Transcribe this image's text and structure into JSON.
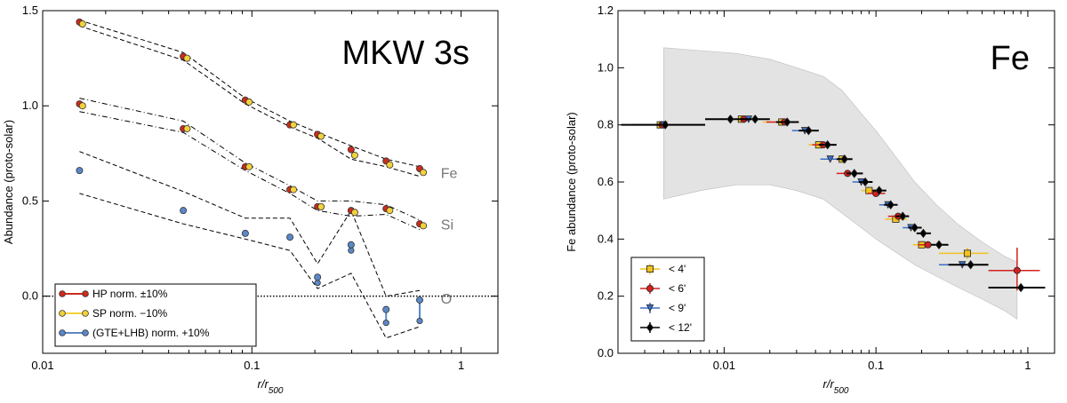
{
  "chart_data": [
    {
      "type": "scatter",
      "title": "MKW 3s",
      "xlabel": "r/r500",
      "ylabel": "Abundance (proto-solar)",
      "xscale": "log",
      "xlim": [
        0.01,
        1.5
      ],
      "ylim": [
        -0.3,
        1.5
      ],
      "xticks": [
        {
          "v": 0.01,
          "label": "0.01"
        },
        {
          "v": 0.1,
          "label": "0.1"
        },
        {
          "v": 1,
          "label": "1"
        }
      ],
      "yticks": [
        {
          "v": 0.0,
          "label": "0.0"
        },
        {
          "v": 0.5,
          "label": "0.5"
        },
        {
          "v": 1.0,
          "label": "1.0"
        },
        {
          "v": 1.5,
          "label": "1.5"
        }
      ],
      "element_labels": [
        {
          "text": "Fe",
          "x": 0.8,
          "y": 0.62
        },
        {
          "text": "Si",
          "x": 0.8,
          "y": 0.35
        },
        {
          "text": "O",
          "x": 0.8,
          "y": -0.04
        }
      ],
      "zero_line": true,
      "grid": false,
      "legend_position": "bottom-left",
      "series": [
        {
          "name": "HP norm. ±10%",
          "color": "#cc2b1d",
          "marker": "circle",
          "groups": [
            {
              "x": [
                0.015,
                0.047,
                0.093,
                0.152,
                0.206,
                0.298,
                0.438,
                0.634
              ],
              "y": [
                1.44,
                1.26,
                1.03,
                0.9,
                0.85,
                0.77,
                0.71,
                0.67
              ]
            },
            {
              "x": [
                0.015,
                0.047,
                0.093,
                0.152,
                0.206,
                0.298,
                0.438,
                0.634
              ],
              "y": [
                1.01,
                0.88,
                0.68,
                0.56,
                0.47,
                0.45,
                0.46,
                0.38
              ]
            }
          ]
        },
        {
          "name": "SP norm. −10%",
          "color": "#f2d23a",
          "marker": "circle",
          "groups": [
            {
              "x": [
                0.0155,
                0.049,
                0.097,
                0.158,
                0.214,
                0.31,
                0.456,
                0.66
              ],
              "y": [
                1.43,
                1.25,
                1.02,
                0.9,
                0.84,
                0.74,
                0.69,
                0.65
              ]
            },
            {
              "x": [
                0.0155,
                0.049,
                0.097,
                0.158,
                0.214,
                0.31,
                0.456,
                0.66
              ],
              "y": [
                1.0,
                0.88,
                0.68,
                0.56,
                0.47,
                0.44,
                0.45,
                0.37
              ]
            }
          ]
        },
        {
          "name": "(GTE+LHB) norm. +10%",
          "color": "#5a88c8",
          "marker": "circle",
          "groups": [
            {
              "x": [
                0.015,
                0.047,
                0.093,
                0.152,
                0.206,
                0.298,
                0.438,
                0.634
              ],
              "y": [
                0.66,
                0.45,
                0.33,
                0.31,
                0.1,
                0.27,
                -0.07,
                -0.02
              ]
            }
          ],
          "ranges": [
            {
              "x": 0.206,
              "y1": 0.07,
              "y2": 0.11
            },
            {
              "x": 0.298,
              "y1": 0.24,
              "y2": 0.28
            },
            {
              "x": 0.438,
              "y1": -0.14,
              "y2": -0.06
            },
            {
              "x": 0.634,
              "y1": -0.13,
              "y2": -0.02
            }
          ]
        }
      ],
      "envelopes": [
        {
          "style": "dashed",
          "upper": {
            "x": [
              0.015,
              0.047,
              0.093,
              0.152,
              0.206,
              0.298,
              0.438,
              0.634
            ],
            "y": [
              1.45,
              1.28,
              1.04,
              0.92,
              0.86,
              0.79,
              0.72,
              0.68
            ]
          },
          "lower": {
            "x": [
              0.015,
              0.047,
              0.093,
              0.152,
              0.206,
              0.298,
              0.438,
              0.634
            ],
            "y": [
              1.42,
              1.24,
              1.01,
              0.89,
              0.83,
              0.72,
              0.68,
              0.63
            ]
          }
        },
        {
          "style": "dashdot",
          "upper": {
            "x": [
              0.015,
              0.047,
              0.093,
              0.152,
              0.206,
              0.298,
              0.438,
              0.634
            ],
            "y": [
              1.04,
              0.92,
              0.7,
              0.58,
              0.5,
              0.5,
              0.48,
              0.4
            ]
          },
          "lower": {
            "x": [
              0.015,
              0.047,
              0.093,
              0.152,
              0.206,
              0.298,
              0.438,
              0.634
            ],
            "y": [
              0.97,
              0.86,
              0.66,
              0.54,
              0.45,
              0.42,
              0.43,
              0.35
            ]
          }
        },
        {
          "style": "dashed",
          "upper": {
            "x": [
              0.015,
              0.047,
              0.093,
              0.152,
              0.206,
              0.298,
              0.438,
              0.634
            ],
            "y": [
              0.76,
              0.55,
              0.41,
              0.41,
              0.17,
              0.45,
              0.0,
              0.03
            ]
          },
          "lower": {
            "x": [
              0.015,
              0.047,
              0.093,
              0.152,
              0.206,
              0.298,
              0.438,
              0.634
            ],
            "y": [
              0.54,
              0.38,
              0.3,
              0.24,
              0.04,
              0.12,
              -0.22,
              -0.16
            ]
          }
        }
      ]
    },
    {
      "type": "scatter",
      "title": "Fe",
      "xlabel": "r/r500",
      "ylabel": "Fe abundance (proto-solar)",
      "xscale": "log",
      "xlim": [
        0.002,
        1.5
      ],
      "ylim": [
        0.0,
        1.2
      ],
      "xticks": [
        {
          "v": 0.01,
          "label": "0.01"
        },
        {
          "v": 0.1,
          "label": "0.1"
        },
        {
          "v": 1,
          "label": "1"
        }
      ],
      "yticks": [
        {
          "v": 0.0,
          "label": "0.0"
        },
        {
          "v": 0.2,
          "label": "0.2"
        },
        {
          "v": 0.4,
          "label": "0.4"
        },
        {
          "v": 0.6,
          "label": "0.6"
        },
        {
          "v": 0.8,
          "label": "0.8"
        },
        {
          "v": 1.0,
          "label": "1.0"
        },
        {
          "v": 1.2,
          "label": "1.2"
        }
      ],
      "grid": false,
      "legend_position": "bottom-left",
      "scatter_band": {
        "color": "#e3e3e3",
        "x": [
          0.004,
          0.007,
          0.012,
          0.02,
          0.03,
          0.045,
          0.06,
          0.08,
          0.1,
          0.13,
          0.18,
          0.25,
          0.35,
          0.5,
          0.7,
          0.85
        ],
        "upper": [
          1.07,
          1.06,
          1.05,
          1.03,
          1.0,
          0.97,
          0.92,
          0.84,
          0.78,
          0.7,
          0.6,
          0.52,
          0.45,
          0.39,
          0.34,
          0.32
        ],
        "lower": [
          0.54,
          0.57,
          0.59,
          0.59,
          0.57,
          0.54,
          0.49,
          0.44,
          0.4,
          0.36,
          0.31,
          0.27,
          0.23,
          0.19,
          0.15,
          0.12
        ]
      },
      "series": [
        {
          "name": "< 4'",
          "color": "#f2c21f",
          "marker": "square",
          "points": [
            {
              "x": 0.0038,
              "y": 0.8,
              "xlo": 0.0025,
              "xhi": 0.0075,
              "ylo": 0.79,
              "yhi": 0.81
            },
            {
              "x": 0.013,
              "y": 0.82,
              "xlo": 0.0095,
              "xhi": 0.018,
              "ylo": 0.81,
              "yhi": 0.83
            },
            {
              "x": 0.024,
              "y": 0.81,
              "xlo": 0.018,
              "xhi": 0.03,
              "ylo": 0.8,
              "yhi": 0.82
            },
            {
              "x": 0.042,
              "y": 0.73,
              "xlo": 0.036,
              "xhi": 0.05,
              "ylo": 0.72,
              "yhi": 0.74
            },
            {
              "x": 0.06,
              "y": 0.68,
              "xlo": 0.05,
              "xhi": 0.07,
              "ylo": 0.67,
              "yhi": 0.69
            },
            {
              "x": 0.09,
              "y": 0.57,
              "xlo": 0.08,
              "xhi": 0.105,
              "ylo": 0.56,
              "yhi": 0.58
            },
            {
              "x": 0.135,
              "y": 0.47,
              "xlo": 0.115,
              "xhi": 0.16,
              "ylo": 0.46,
              "yhi": 0.48
            },
            {
              "x": 0.2,
              "y": 0.38,
              "xlo": 0.175,
              "xhi": 0.24,
              "ylo": 0.37,
              "yhi": 0.39
            },
            {
              "x": 0.4,
              "y": 0.35,
              "xlo": 0.26,
              "xhi": 0.55,
              "ylo": 0.33,
              "yhi": 0.37
            }
          ]
        },
        {
          "name": "< 6'",
          "color": "#d42020",
          "marker": "circle",
          "points": [
            {
              "x": 0.0039,
              "y": 0.8,
              "xlo": 0.0025,
              "xhi": 0.0075,
              "ylo": 0.79,
              "yhi": 0.81
            },
            {
              "x": 0.0135,
              "y": 0.82,
              "xlo": 0.0095,
              "xhi": 0.019,
              "ylo": 0.81,
              "yhi": 0.83
            },
            {
              "x": 0.025,
              "y": 0.81,
              "xlo": 0.019,
              "xhi": 0.031,
              "ylo": 0.8,
              "yhi": 0.82
            },
            {
              "x": 0.045,
              "y": 0.73,
              "xlo": 0.038,
              "xhi": 0.053,
              "ylo": 0.72,
              "yhi": 0.74
            },
            {
              "x": 0.065,
              "y": 0.63,
              "xlo": 0.055,
              "xhi": 0.075,
              "ylo": 0.62,
              "yhi": 0.64
            },
            {
              "x": 0.1,
              "y": 0.56,
              "xlo": 0.088,
              "xhi": 0.115,
              "ylo": 0.55,
              "yhi": 0.57
            },
            {
              "x": 0.14,
              "y": 0.48,
              "xlo": 0.12,
              "xhi": 0.165,
              "ylo": 0.47,
              "yhi": 0.49
            },
            {
              "x": 0.22,
              "y": 0.38,
              "xlo": 0.19,
              "xhi": 0.26,
              "ylo": 0.37,
              "yhi": 0.39
            },
            {
              "x": 0.85,
              "y": 0.29,
              "xlo": 0.55,
              "xhi": 1.2,
              "ylo": 0.22,
              "yhi": 0.37
            }
          ]
        },
        {
          "name": "< 9'",
          "color": "#3b6fc7",
          "marker": "triangle",
          "points": [
            {
              "x": 0.004,
              "y": 0.8,
              "xlo": 0.0025,
              "xhi": 0.0075,
              "ylo": 0.79,
              "yhi": 0.81
            },
            {
              "x": 0.0145,
              "y": 0.82,
              "xlo": 0.01,
              "xhi": 0.02,
              "ylo": 0.81,
              "yhi": 0.83
            },
            {
              "x": 0.034,
              "y": 0.78,
              "xlo": 0.028,
              "xhi": 0.04,
              "ylo": 0.77,
              "yhi": 0.79
            },
            {
              "x": 0.05,
              "y": 0.68,
              "xlo": 0.043,
              "xhi": 0.058,
              "ylo": 0.67,
              "yhi": 0.69
            },
            {
              "x": 0.08,
              "y": 0.6,
              "xlo": 0.07,
              "xhi": 0.092,
              "ylo": 0.59,
              "yhi": 0.61
            },
            {
              "x": 0.12,
              "y": 0.52,
              "xlo": 0.105,
              "xhi": 0.14,
              "ylo": 0.51,
              "yhi": 0.53
            },
            {
              "x": 0.17,
              "y": 0.44,
              "xlo": 0.15,
              "xhi": 0.2,
              "ylo": 0.43,
              "yhi": 0.45
            },
            {
              "x": 0.37,
              "y": 0.31,
              "xlo": 0.26,
              "xhi": 0.52,
              "ylo": 0.3,
              "yhi": 0.32
            }
          ]
        },
        {
          "name": "< 12'",
          "color": "#000000",
          "marker": "diamond",
          "points": [
            {
              "x": 0.0041,
              "y": 0.8,
              "xlo": 0.0021,
              "xhi": 0.0075,
              "ylo": 0.79,
              "yhi": 0.81
            },
            {
              "x": 0.011,
              "y": 0.82,
              "xlo": 0.0075,
              "xhi": 0.015,
              "ylo": 0.81,
              "yhi": 0.83
            },
            {
              "x": 0.016,
              "y": 0.82,
              "xlo": 0.013,
              "xhi": 0.02,
              "ylo": 0.81,
              "yhi": 0.83
            },
            {
              "x": 0.026,
              "y": 0.81,
              "xlo": 0.022,
              "xhi": 0.031,
              "ylo": 0.8,
              "yhi": 0.82
            },
            {
              "x": 0.036,
              "y": 0.78,
              "xlo": 0.031,
              "xhi": 0.042,
              "ylo": 0.77,
              "yhi": 0.79
            },
            {
              "x": 0.048,
              "y": 0.73,
              "xlo": 0.042,
              "xhi": 0.055,
              "ylo": 0.72,
              "yhi": 0.74
            },
            {
              "x": 0.062,
              "y": 0.68,
              "xlo": 0.055,
              "xhi": 0.07,
              "ylo": 0.67,
              "yhi": 0.69
            },
            {
              "x": 0.072,
              "y": 0.63,
              "xlo": 0.064,
              "xhi": 0.082,
              "ylo": 0.62,
              "yhi": 0.64
            },
            {
              "x": 0.085,
              "y": 0.6,
              "xlo": 0.077,
              "xhi": 0.095,
              "ylo": 0.59,
              "yhi": 0.61
            },
            {
              "x": 0.105,
              "y": 0.57,
              "xlo": 0.095,
              "xhi": 0.117,
              "ylo": 0.56,
              "yhi": 0.58
            },
            {
              "x": 0.125,
              "y": 0.52,
              "xlo": 0.113,
              "xhi": 0.138,
              "ylo": 0.51,
              "yhi": 0.53
            },
            {
              "x": 0.15,
              "y": 0.48,
              "xlo": 0.135,
              "xhi": 0.165,
              "ylo": 0.47,
              "yhi": 0.49
            },
            {
              "x": 0.18,
              "y": 0.44,
              "xlo": 0.163,
              "xhi": 0.2,
              "ylo": 0.43,
              "yhi": 0.45
            },
            {
              "x": 0.205,
              "y": 0.42,
              "xlo": 0.185,
              "xhi": 0.23,
              "ylo": 0.41,
              "yhi": 0.43
            },
            {
              "x": 0.26,
              "y": 0.38,
              "xlo": 0.23,
              "xhi": 0.3,
              "ylo": 0.37,
              "yhi": 0.39
            },
            {
              "x": 0.42,
              "y": 0.31,
              "xlo": 0.3,
              "xhi": 0.55,
              "ylo": 0.3,
              "yhi": 0.32
            },
            {
              "x": 0.9,
              "y": 0.23,
              "xlo": 0.55,
              "xhi": 1.3,
              "ylo": 0.22,
              "yhi": 0.24
            }
          ]
        }
      ]
    }
  ]
}
